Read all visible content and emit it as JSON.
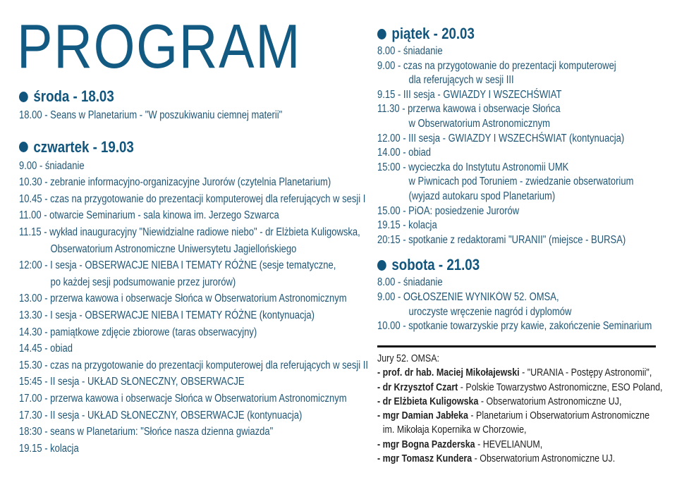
{
  "title": "PROGRAM",
  "left_days": [
    {
      "heading": "środa - 18.03",
      "lines": [
        {
          "text": "18.00 - Seans w Planetarium - \"W poszukiwaniu ciemnej materii\""
        }
      ]
    },
    {
      "heading": "czwartek - 19.03",
      "lines": [
        {
          "text": "9.00 - śniadanie"
        },
        {
          "text": "10.30 - zebranie informacyjno-organizacyjne Jurorów (czytelnia Planetarium)"
        },
        {
          "text": "10.45 - czas na przygotowanie do prezentacji komputerowej dla referujących w sesji I"
        },
        {
          "text": "11.00 - otwarcie Seminarium - sala kinowa im. Jerzego Szwarca"
        },
        {
          "text": "11.15 - wykład inauguracyjny \"Niewidzialne radiowe niebo\" - dr Elżbieta Kuligowska,"
        },
        {
          "text": "Obserwatorium Astronomiczne Uniwersytetu Jagiellońskiego",
          "continuation": true
        },
        {
          "text": "12:00 - I sesja - OBSERWACJE NIEBA I TEMATY RÓŻNE (sesje tematyczne,"
        },
        {
          "text": "po każdej sesji podsumowanie przez jurorów)",
          "continuation": true
        },
        {
          "text": "13.00 - przerwa kawowa i obserwacje Słońca w Obserwatorium Astronomicznym"
        },
        {
          "text": "13.30 - I sesja - OBSERWACJE NIEBA I TEMATY RÓŻNE (kontynuacja)"
        },
        {
          "text": "14.30 - pamiątkowe zdjęcie zbiorowe (taras obserwacyjny)"
        },
        {
          "text": "14.45 - obiad"
        },
        {
          "text": "15.30 - czas na przygotowanie do prezentacji komputerowej dla referujących w sesji II"
        },
        {
          "text": "15:45 - II sesja - UKŁAD SŁONECZNY, OBSERWACJE"
        },
        {
          "text": "17.00 - przerwa kawowa i obserwacje Słońca w Obserwatorium Astronomicznym"
        },
        {
          "text": "17.30 - II sesja - UKŁAD SŁONECZNY, OBSERWACJE (kontynuacja)"
        },
        {
          "text": "18:30 - seans w Planetarium: \"Słońce nasza dzienna gwiazda\""
        },
        {
          "text": "19.15 - kolacja"
        }
      ]
    }
  ],
  "right_days": [
    {
      "heading": "piątek - 20.03",
      "lines": [
        {
          "text": "8.00 - śniadanie"
        },
        {
          "text": "9.00 - czas na przygotowanie do prezentacji komputerowej"
        },
        {
          "text": "dla referujących w sesji III",
          "continuation": true
        },
        {
          "text": "9.15 - III sesja - GWIAZDY I WSZECHŚWIAT"
        },
        {
          "text": "11.30 - przerwa kawowa i obserwacje Słońca"
        },
        {
          "text": "w Obserwatorium Astronomicznym",
          "continuation": true
        },
        {
          "text": "12.00 - III sesja - GWIAZDY I WSZECHŚWIAT (kontynuacja)"
        },
        {
          "text": "14.00 - obiad"
        },
        {
          "text": "15:00 - wycieczka do Instytutu Astronomii UMK"
        },
        {
          "text": "w Piwnicach pod Toruniem - zwiedzanie obserwatorium",
          "continuation": true
        },
        {
          "text": "(wyjazd autokaru spod Planetarium)",
          "continuation": true
        },
        {
          "text": "15.00 - PiOA: posiedzenie Jurorów"
        },
        {
          "text": "19.15 - kolacja"
        },
        {
          "text": "20:15 - spotkanie z redaktorami \"URANII\" (miejsce - BURSA)"
        }
      ]
    },
    {
      "heading": "sobota - 21.03",
      "lines": [
        {
          "text": "8.00 - śniadanie"
        },
        {
          "text": "9.00 - OGŁOSZENIE WYNIKÓW 52. OMSA,"
        },
        {
          "text": "uroczyste wręczenie nagród i dyplomów",
          "continuation": true
        },
        {
          "text": "10.00 - spotkanie towarzyskie przy kawie, zakończenie Seminarium"
        }
      ]
    }
  ],
  "jury": {
    "heading": "Jury 52. OMSA:",
    "members": [
      {
        "name": "prof. dr hab. Maciej Mikołajewski",
        "affiliation": " - \"URANIA - Postępy Astronomii\","
      },
      {
        "name": "dr Krzysztof Czart",
        "affiliation": " - Polskie Towarzystwo Astronomiczne, ESO Poland,"
      },
      {
        "name": "dr Elżbieta Kuligowska",
        "affiliation": " - Obserwatorium Astronomiczne UJ,"
      },
      {
        "name": "mgr Damian Jabłeka",
        "affiliation": " - Planetarium i Obserwatorium Astronomiczne",
        "cont": "im. Mikołaja Kopernika w Chorzowie,"
      },
      {
        "name": "mgr Bogna Pazderska",
        "affiliation": " - HEVELIANUM,"
      },
      {
        "name": "mgr Tomasz Kundera",
        "affiliation": " - Obserwatorium Astronomiczne UJ."
      }
    ]
  }
}
